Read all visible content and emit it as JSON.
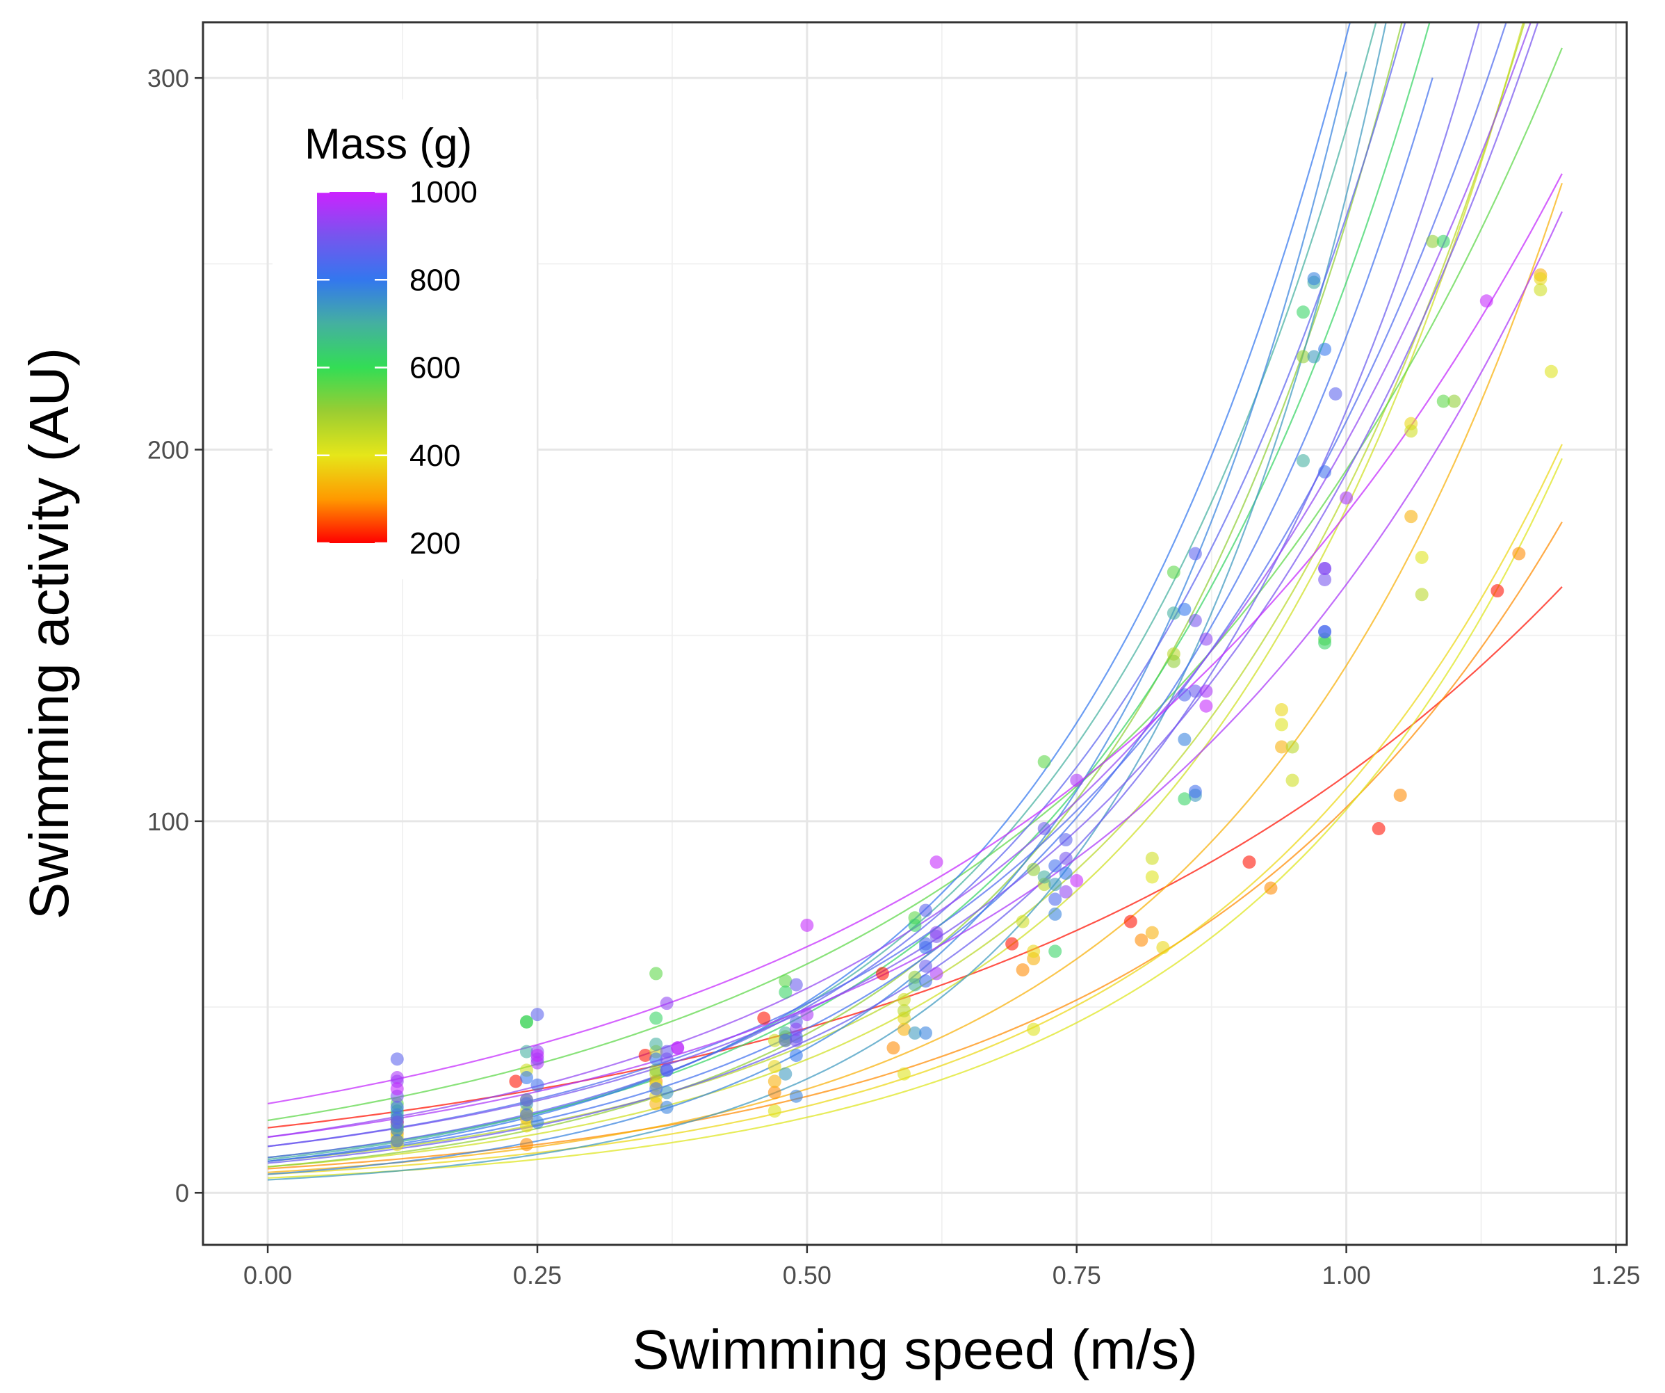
{
  "chart_data": {
    "type": "scatter",
    "title": "",
    "xlabel": "Swimming speed (m/s)",
    "ylabel": "Swimming activity (AU)",
    "xlim": [
      -0.06,
      1.26
    ],
    "ylim": [
      -14,
      315
    ],
    "x_ticks": [
      0.0,
      0.25,
      0.5,
      0.75,
      1.0,
      1.25
    ],
    "x_tick_labels": [
      "0.00",
      "0.25",
      "0.50",
      "0.75",
      "1.00",
      "1.25"
    ],
    "y_ticks": [
      0,
      100,
      200,
      300
    ],
    "y_tick_labels": [
      "0",
      "100",
      "200",
      "300"
    ],
    "grid": true,
    "fit": "exponential curve per individual fish",
    "legend": {
      "title": "Mass (g)",
      "placement": "top-left",
      "type": "colorbar",
      "range": [
        200,
        1000
      ],
      "ticks": [
        200,
        400,
        600,
        800,
        1000
      ],
      "tick_labels": [
        "200",
        "400",
        "600",
        "800",
        "1000"
      ],
      "stops": [
        {
          "value": 200,
          "color": "#ff0000"
        },
        {
          "value": 300,
          "color": "#ff9900"
        },
        {
          "value": 400,
          "color": "#e6e619"
        },
        {
          "value": 500,
          "color": "#9acd32"
        },
        {
          "value": 600,
          "color": "#33dd55"
        },
        {
          "value": 700,
          "color": "#44b0a0"
        },
        {
          "value": 800,
          "color": "#3377ee"
        },
        {
          "value": 900,
          "color": "#7755ee"
        },
        {
          "value": 1000,
          "color": "#cc22ff"
        }
      ]
    },
    "series": [
      {
        "mass": 210,
        "a": 17.5,
        "b": 1.86,
        "x_max": 1.2,
        "points": [
          [
            0.12,
            19
          ],
          [
            0.23,
            30
          ],
          [
            0.35,
            37
          ],
          [
            0.46,
            47
          ],
          [
            0.57,
            59
          ],
          [
            0.69,
            67
          ],
          [
            0.8,
            73
          ],
          [
            0.91,
            89
          ],
          [
            1.03,
            98
          ],
          [
            1.14,
            162
          ]
        ]
      },
      {
        "mass": 290,
        "a": 6.5,
        "b": 2.77,
        "x_max": 1.2,
        "points": [
          [
            0.12,
            16
          ],
          [
            0.24,
            13
          ],
          [
            0.36,
            30
          ],
          [
            0.47,
            27
          ],
          [
            0.58,
            39
          ],
          [
            0.7,
            60
          ],
          [
            0.81,
            68
          ],
          [
            0.93,
            82
          ],
          [
            1.05,
            107
          ],
          [
            1.16,
            172
          ]
        ]
      },
      {
        "mass": 330,
        "a": 5.5,
        "b": 3.25,
        "x_max": 1.2,
        "points": [
          [
            0.12,
            14
          ],
          [
            0.24,
            20
          ],
          [
            0.36,
            24
          ],
          [
            0.47,
            30
          ],
          [
            0.59,
            44
          ],
          [
            0.71,
            63
          ],
          [
            0.82,
            70
          ],
          [
            0.94,
            120
          ],
          [
            1.06,
            182
          ],
          [
            1.18,
            247
          ]
        ]
      },
      {
        "mass": 380,
        "a": 5.0,
        "b": 3.08,
        "x_max": 1.2,
        "points": [
          [
            0.12,
            13
          ],
          [
            0.24,
            18
          ],
          [
            0.36,
            26
          ],
          [
            0.47,
            34
          ],
          [
            0.59,
            47
          ],
          [
            0.71,
            65
          ],
          [
            0.83,
            66
          ],
          [
            0.94,
            130
          ],
          [
            1.06,
            207
          ],
          [
            1.18,
            246
          ]
        ]
      },
      {
        "mass": 410,
        "a": 4.0,
        "b": 3.25,
        "x_max": 1.2,
        "points": [
          [
            0.12,
            15
          ],
          [
            0.24,
            22
          ],
          [
            0.36,
            29
          ],
          [
            0.47,
            22
          ],
          [
            0.59,
            32
          ],
          [
            0.71,
            44
          ],
          [
            0.82,
            85
          ],
          [
            0.94,
            126
          ],
          [
            1.07,
            171
          ],
          [
            1.19,
            221
          ]
        ]
      },
      {
        "mass": 430,
        "a": 7.0,
        "b": 3.27,
        "x_max": 1.2,
        "points": [
          [
            0.12,
            17
          ],
          [
            0.24,
            33
          ],
          [
            0.36,
            38
          ],
          [
            0.47,
            41
          ],
          [
            0.59,
            52
          ],
          [
            0.7,
            73
          ],
          [
            0.82,
            90
          ],
          [
            0.95,
            111
          ],
          [
            1.06,
            205
          ],
          [
            1.18,
            243
          ]
        ]
      },
      {
        "mass": 460,
        "a": 8.5,
        "b": 3.1,
        "x_max": 1.2,
        "points": [
          [
            0.12,
            18
          ],
          [
            0.24,
            21
          ],
          [
            0.36,
            32
          ],
          [
            0.48,
            41
          ],
          [
            0.59,
            49
          ],
          [
            0.72,
            83
          ],
          [
            0.84,
            145
          ],
          [
            0.95,
            120
          ],
          [
            1.07,
            161
          ]
        ]
      },
      {
        "mass": 510,
        "a": 7.0,
        "b": 3.62,
        "x_max": 1.2,
        "points": [
          [
            0.12,
            20
          ],
          [
            0.24,
            25
          ],
          [
            0.36,
            33
          ],
          [
            0.48,
            42
          ],
          [
            0.6,
            58
          ],
          [
            0.71,
            87
          ],
          [
            0.84,
            143
          ],
          [
            0.96,
            225
          ],
          [
            1.08,
            256
          ],
          [
            1.1,
            213
          ]
        ]
      },
      {
        "mass": 560,
        "a": 19.5,
        "b": 2.3,
        "x_max": 1.2,
        "points": [
          [
            0.12,
            24
          ],
          [
            0.24,
            46
          ],
          [
            0.36,
            59
          ],
          [
            0.48,
            57
          ],
          [
            0.6,
            74
          ],
          [
            0.72,
            116
          ],
          [
            0.84,
            167
          ],
          [
            0.98,
            149
          ],
          [
            1.09,
            213
          ]
        ]
      },
      {
        "mass": 620,
        "a": 9.5,
        "b": 3.25,
        "x_max": 1.09,
        "points": [
          [
            0.12,
            22
          ],
          [
            0.24,
            46
          ],
          [
            0.36,
            47
          ],
          [
            0.48,
            54
          ],
          [
            0.6,
            72
          ],
          [
            0.73,
            65
          ],
          [
            0.85,
            106
          ],
          [
            0.96,
            237
          ],
          [
            0.98,
            148
          ],
          [
            1.09,
            256
          ]
        ]
      },
      {
        "mass": 700,
        "a": 9.0,
        "b": 3.46,
        "x_max": 1.06,
        "points": [
          [
            0.12,
            18
          ],
          [
            0.24,
            38
          ],
          [
            0.36,
            40
          ],
          [
            0.48,
            43
          ],
          [
            0.6,
            56
          ],
          [
            0.72,
            85
          ],
          [
            0.84,
            156
          ],
          [
            0.97,
            245
          ],
          [
            0.96,
            197
          ]
        ]
      },
      {
        "mass": 740,
        "a": 3.5,
        "b": 4.34,
        "x_max": 1.07,
        "points": [
          [
            0.12,
            21
          ],
          [
            0.24,
            24
          ],
          [
            0.37,
            27
          ],
          [
            0.48,
            32
          ],
          [
            0.6,
            43
          ],
          [
            0.73,
            83
          ],
          [
            0.86,
            107
          ],
          [
            0.97,
            225
          ]
        ]
      },
      {
        "mass": 780,
        "a": 5.0,
        "b": 4.1,
        "x_max": 1.0,
        "points": [
          [
            0.12,
            17
          ],
          [
            0.25,
            19
          ],
          [
            0.37,
            23
          ],
          [
            0.49,
            26
          ],
          [
            0.61,
            43
          ],
          [
            0.73,
            75
          ],
          [
            0.85,
            122
          ],
          [
            0.97,
            246
          ]
        ]
      },
      {
        "mass": 800,
        "a": 8.5,
        "b": 3.6,
        "x_max": 1.04,
        "points": [
          [
            0.12,
            14
          ],
          [
            0.24,
            31
          ],
          [
            0.36,
            36
          ],
          [
            0.49,
            37
          ],
          [
            0.61,
            66
          ],
          [
            0.74,
            86
          ],
          [
            0.85,
            157
          ],
          [
            0.98,
            227
          ]
        ]
      },
      {
        "mass": 820,
        "a": 8.5,
        "b": 3.3,
        "x_max": 1.08,
        "points": [
          [
            0.12,
            23
          ],
          [
            0.25,
            29
          ],
          [
            0.36,
            28
          ],
          [
            0.49,
            42
          ],
          [
            0.61,
            57
          ],
          [
            0.73,
            88
          ],
          [
            0.86,
            108
          ],
          [
            0.98,
            194
          ],
          [
            0.98,
            151
          ]
        ]
      },
      {
        "mass": 840,
        "a": 12.5,
        "b": 2.81,
        "x_max": 1.2,
        "points": [
          [
            0.12,
            20
          ],
          [
            0.24,
            21
          ],
          [
            0.37,
            33
          ],
          [
            0.48,
            41
          ],
          [
            0.61,
            67
          ],
          [
            0.73,
            79
          ],
          [
            0.85,
            134
          ],
          [
            0.98,
            151
          ]
        ]
      },
      {
        "mass": 860,
        "a": 9.5,
        "b": 3.32,
        "x_max": 1.1,
        "points": [
          [
            0.12,
            36
          ],
          [
            0.25,
            48
          ],
          [
            0.37,
            33
          ],
          [
            0.49,
            46
          ],
          [
            0.61,
            76
          ],
          [
            0.74,
            95
          ],
          [
            0.86,
            172
          ],
          [
            0.99,
            215
          ]
        ]
      },
      {
        "mass": 880,
        "a": 8.0,
        "b": 3.27,
        "x_max": 1.16,
        "points": [
          [
            0.12,
            19
          ],
          [
            0.24,
            25
          ],
          [
            0.37,
            38
          ],
          [
            0.49,
            56
          ],
          [
            0.61,
            61
          ],
          [
            0.72,
            98
          ],
          [
            0.86,
            135
          ],
          [
            0.98,
            168
          ]
        ]
      },
      {
        "mass": 900,
        "a": 12.5,
        "b": 2.74,
        "x_max": 1.2,
        "points": [
          [
            0.12,
            26
          ],
          [
            0.25,
            36
          ],
          [
            0.37,
            36
          ],
          [
            0.49,
            41
          ],
          [
            0.62,
            69
          ],
          [
            0.74,
            90
          ],
          [
            0.86,
            154
          ],
          [
            0.98,
            165
          ]
        ]
      },
      {
        "mass": 930,
        "a": 15.0,
        "b": 2.6,
        "x_max": 1.2,
        "points": [
          [
            0.12,
            30
          ],
          [
            0.25,
            38
          ],
          [
            0.37,
            51
          ],
          [
            0.49,
            44
          ],
          [
            0.62,
            70
          ],
          [
            0.74,
            81
          ],
          [
            0.87,
            149
          ],
          [
            0.98,
            168
          ]
        ]
      },
      {
        "mass": 960,
        "a": 15.0,
        "b": 2.39,
        "x_max": 1.2,
        "points": [
          [
            0.12,
            31
          ],
          [
            0.25,
            35
          ],
          [
            0.38,
            39
          ],
          [
            0.5,
            48
          ],
          [
            0.62,
            59
          ],
          [
            0.75,
            111
          ],
          [
            0.87,
            135
          ],
          [
            1.0,
            187
          ]
        ]
      },
      {
        "mass": 990,
        "a": 24.0,
        "b": 2.03,
        "x_max": 1.2,
        "points": [
          [
            0.12,
            28
          ],
          [
            0.25,
            37
          ],
          [
            0.38,
            39
          ],
          [
            0.5,
            72
          ],
          [
            0.62,
            89
          ],
          [
            0.75,
            84
          ],
          [
            0.87,
            131
          ],
          [
            1.13,
            240
          ]
        ]
      }
    ]
  }
}
